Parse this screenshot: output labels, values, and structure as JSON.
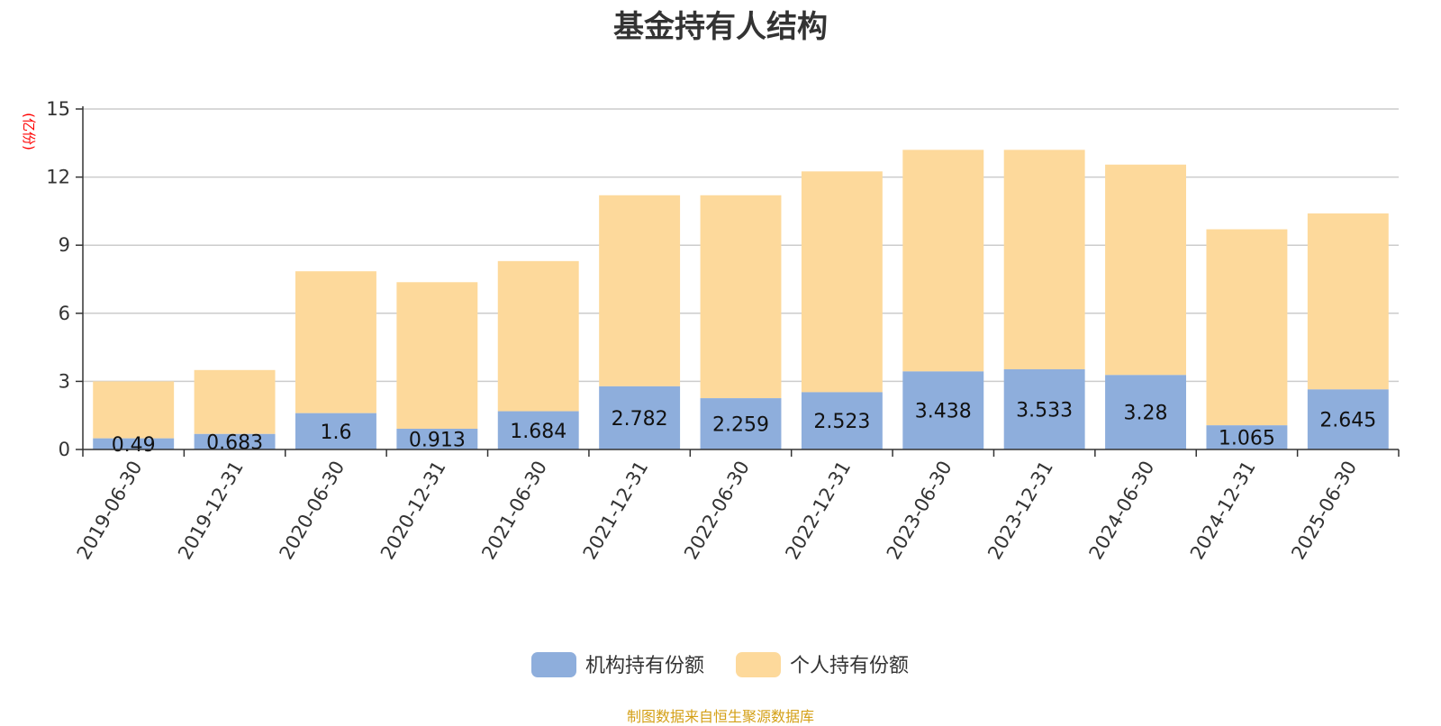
{
  "title": "基金持有人结构",
  "source": "制图数据来自恒生聚源数据库",
  "colors": {
    "institutional": "#8eaedc",
    "individual": "#fdd99b",
    "unit": "#ff0000",
    "source": "#d4a017"
  },
  "chart_data": {
    "type": "bar",
    "stacked": true,
    "categories": [
      "2019-06-30",
      "2019-12-31",
      "2020-06-30",
      "2020-12-31",
      "2021-06-30",
      "2021-12-31",
      "2022-06-30",
      "2022-12-31",
      "2023-06-30",
      "2023-12-31",
      "2024-06-30",
      "2024-12-31",
      "2025-06-30"
    ],
    "series": [
      {
        "name": "机构持有份额",
        "values": [
          0.49,
          0.683,
          1.6,
          0.913,
          1.684,
          2.782,
          2.259,
          2.523,
          3.438,
          3.533,
          3.28,
          1.065,
          2.645
        ]
      },
      {
        "name": "个人持有份额",
        "values": [
          2.51,
          2.817,
          6.25,
          6.457,
          6.616,
          8.418,
          8.941,
          9.727,
          9.762,
          9.667,
          9.27,
          8.635,
          7.755
        ]
      }
    ],
    "data_labels": [
      "0.49",
      "0.683",
      "1.6",
      "0.913",
      "1.684",
      "2.782",
      "2.259",
      "2.523",
      "3.438",
      "3.533",
      "3.28",
      "1.065",
      "2.645"
    ],
    "ylabel": "(亿份)",
    "ylim": [
      0,
      15
    ],
    "yticks": [
      "0",
      "3",
      "6",
      "9",
      "12",
      "15"
    ],
    "grid": true,
    "legend_position": "bottom"
  }
}
